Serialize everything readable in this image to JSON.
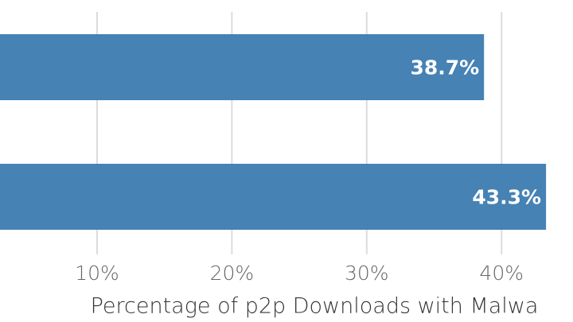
{
  "chart_data": {
    "type": "bar",
    "orientation": "horizontal",
    "categories": [
      null,
      null
    ],
    "values": [
      38.7,
      43.3
    ],
    "value_labels": [
      "38.7%",
      "43.3%"
    ],
    "color": "#4682b4",
    "x_label": "Percentage of p2p Downloads with Malwa",
    "xlim": [
      2.8,
      45.3
    ],
    "xticks": [
      {
        "value": 10,
        "label": "10%"
      },
      {
        "value": 20,
        "label": "20%"
      },
      {
        "value": 30,
        "label": "30%"
      },
      {
        "value": 40,
        "label": "40%"
      }
    ],
    "grid": true
  }
}
